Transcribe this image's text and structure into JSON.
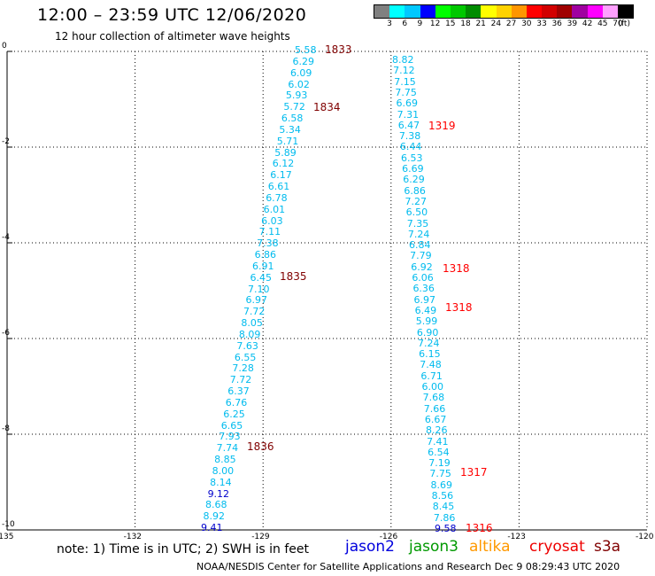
{
  "header": {
    "title": "12:00 – 23:59 UTC 12/06/2020",
    "subtitle": "12 hour collection of altimeter wave heights"
  },
  "legend": {
    "unit": "(ft)",
    "bins": [
      {
        "label": "3",
        "color": "#808080"
      },
      {
        "label": "6",
        "color": "#00ffff"
      },
      {
        "label": "9",
        "color": "#00c8ff"
      },
      {
        "label": "12",
        "color": "#0000ff"
      },
      {
        "label": "15",
        "color": "#00ff00"
      },
      {
        "label": "18",
        "color": "#00c800"
      },
      {
        "label": "21",
        "color": "#008c00"
      },
      {
        "label": "24",
        "color": "#ffff00"
      },
      {
        "label": "27",
        "color": "#ffd200"
      },
      {
        "label": "30",
        "color": "#ff9600"
      },
      {
        "label": "33",
        "color": "#ff0000"
      },
      {
        "label": "36",
        "color": "#d20000"
      },
      {
        "label": "39",
        "color": "#a00000"
      },
      {
        "label": "42",
        "color": "#a000a0"
      },
      {
        "label": "45",
        "color": "#ff00ff"
      },
      {
        "label": "70",
        "color": "#ffa0ff"
      },
      {
        "label": "",
        "color": "#000000"
      }
    ]
  },
  "axes": {
    "lon_ticks": [
      "-135",
      "-132",
      "-129",
      "-126",
      "-123",
      "-120"
    ],
    "lat_ticks": [
      "0",
      "-2",
      "-4",
      "-6",
      "-8",
      "-10"
    ],
    "lon_range": [
      -135,
      -120
    ],
    "lat_range": [
      -10,
      0
    ],
    "grid": "dotted"
  },
  "colors": {
    "cyan": "#00bbee",
    "blue": "#0000cc",
    "dark_red": "#800000",
    "red": "#ff0000"
  },
  "passes": [
    {
      "label": "1833",
      "color": "dark_red"
    },
    {
      "label": "1834",
      "color": "dark_red"
    },
    {
      "label": "1835",
      "color": "dark_red"
    },
    {
      "label": "1836",
      "color": "dark_red"
    },
    {
      "label": "1319",
      "color": "red"
    },
    {
      "label": "1318",
      "color": "red"
    },
    {
      "label": "1318",
      "color": "red"
    },
    {
      "label": "1317",
      "color": "red"
    },
    {
      "label": "1316",
      "color": "red"
    }
  ],
  "track1": [
    "5.58",
    "6.29",
    "6.09",
    "6.02",
    "5.93",
    "5.72",
    "6.58",
    "5.34",
    "5.71",
    "5.89",
    "6.12",
    "6.17",
    "6.61",
    "6.78",
    "6.01",
    "6.03",
    "7.11",
    "7.38",
    "6.86",
    "6.91",
    "6.45",
    "7.10",
    "6.97",
    "7.72",
    "8.05",
    "8.09",
    "7.63",
    "6.55",
    "7.28",
    "7.72",
    "6.37",
    "6.76",
    "6.25",
    "6.65",
    "7.93",
    "7.74",
    "8.85",
    "8.00",
    "8.14",
    "9.12",
    "8.68",
    "8.92",
    "9.41"
  ],
  "track2": [
    "8.82",
    "7.12",
    "7.15",
    "7.75",
    "6.69",
    "7.31",
    "6.47",
    "7.38",
    "6.44",
    "6.53",
    "6.69",
    "6.29",
    "6.86",
    "7.27",
    "6.50",
    "7.35",
    "7.24",
    "6.84",
    "7.79",
    "6.92",
    "6.06",
    "6.36",
    "6.97",
    "6.49",
    "5.99",
    "6.90",
    "7.24",
    "6.15",
    "7.48",
    "6.71",
    "6.00",
    "7.68",
    "7.66",
    "6.67",
    "8.26",
    "7.41",
    "6.54",
    "7.19",
    "7.75",
    "8.69",
    "8.56",
    "8.45",
    "7.86",
    "9.58"
  ],
  "footer": {
    "note": "note:  1) Time is in UTC;  2) SWH is in feet",
    "satellites": [
      {
        "name": "jason2",
        "color": "#0000dd"
      },
      {
        "name": "jason3",
        "color": "#009900"
      },
      {
        "name": "altika",
        "color": "#ff9900"
      },
      {
        "name": "cryosat",
        "color": "#ee0000"
      },
      {
        "name": "s3a",
        "color": "#800000"
      }
    ],
    "credit": "NOAA/NESDIS Center for Satellite Applications and Research    Dec  9 08:29:43 UTC 2020"
  }
}
